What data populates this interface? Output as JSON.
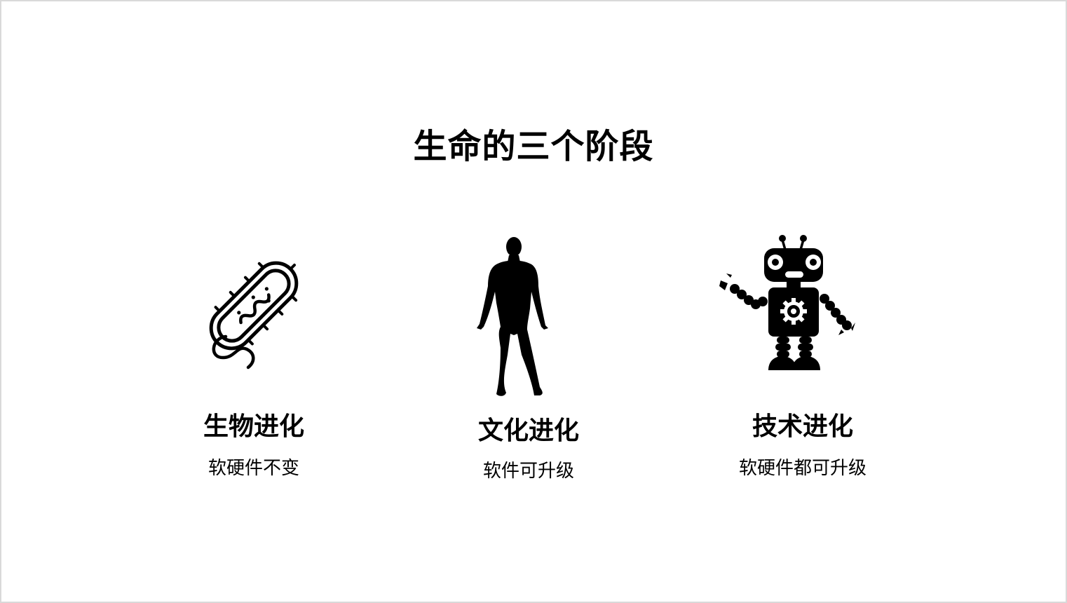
{
  "slide": {
    "title": "生命的三个阶段",
    "stages": [
      {
        "icon": "bacterium-icon",
        "title": "生物进化",
        "desc": "软硬件不变"
      },
      {
        "icon": "human-silhouette-icon",
        "title": "文化进化",
        "desc": "软件可升级"
      },
      {
        "icon": "robot-icon",
        "title": "技术进化",
        "desc": "软硬件都可升级"
      }
    ]
  },
  "colors": {
    "background": "#ffffff",
    "text": "#000000",
    "border": "#d9d9d9"
  }
}
